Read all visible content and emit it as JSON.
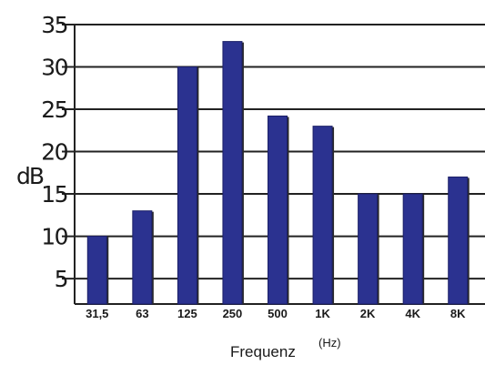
{
  "chart_data": {
    "type": "bar",
    "categories": [
      "31,5",
      "63",
      "125",
      "250",
      "500",
      "1K",
      "2K",
      "4K",
      "8K"
    ],
    "values": [
      10,
      13,
      30,
      33,
      24.2,
      23,
      15,
      15,
      17
    ],
    "ylabel": "dB",
    "xlabel": "Frequenz",
    "xlabel_unit": "(Hz)",
    "ylim": [
      2,
      35
    ],
    "yticks": [
      "5",
      "10",
      "15",
      "20",
      "25",
      "30",
      "35"
    ],
    "grid": true,
    "colors": {
      "bar": "#2b3290",
      "bar_shadow": "#2b2b2b",
      "grid": "#222222"
    }
  }
}
